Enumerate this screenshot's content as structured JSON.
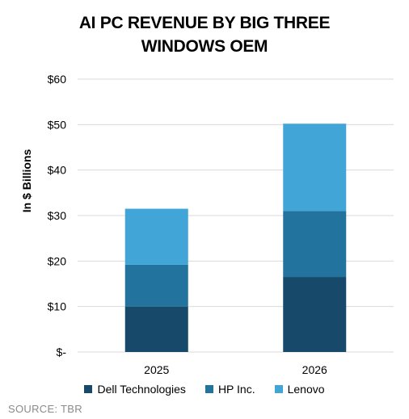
{
  "chart_data": {
    "type": "bar",
    "stacked": true,
    "title_lines": [
      "AI PC REVENUE BY BIG THREE",
      "WINDOWS OEM"
    ],
    "xlabel": "",
    "ylabel": "In $ Billions",
    "categories": [
      "2025",
      "2026"
    ],
    "series": [
      {
        "name": "Dell Technologies",
        "color": "#17496a",
        "values": [
          10.0,
          16.5
        ]
      },
      {
        "name": "HP Inc.",
        "color": "#22739e",
        "values": [
          9.2,
          14.5
        ]
      },
      {
        "name": "Lenovo",
        "color": "#42a5d8",
        "values": [
          12.3,
          19.2
        ]
      }
    ],
    "ylim": [
      0,
      60
    ],
    "yticks": [
      0,
      10,
      20,
      30,
      40,
      50,
      60
    ],
    "ytick_labels": [
      "$-",
      "$10",
      "$20",
      "$30",
      "$40",
      "$50",
      "$60"
    ],
    "grid": true,
    "legend": "bottom",
    "source": "SOURCE: TBR"
  }
}
